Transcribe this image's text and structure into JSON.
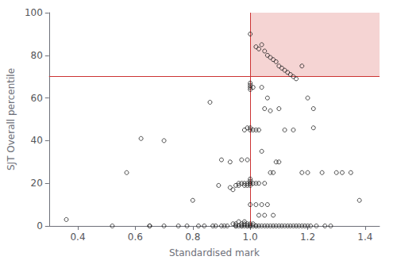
{
  "chart_data": {
    "type": "scatter",
    "xlabel": "Standardised mark",
    "ylabel": "SJT Overall percentile",
    "xlim": [
      0.3,
      1.45
    ],
    "ylim": [
      0,
      100
    ],
    "xticks": [
      0.4,
      0.6,
      0.8,
      {
        "value": 1.0,
        "label": "1.0"
      },
      1.2,
      1.4
    ],
    "yticks": [
      0,
      20,
      40,
      60,
      80,
      100
    ],
    "grid": false,
    "marker": "open circle",
    "color": "#222222",
    "vline_x": 1.0,
    "hline_y": 70,
    "line_color": "#cc3333",
    "region_color": "#d9534f",
    "x": [
      0.36,
      0.52,
      0.57,
      0.62,
      0.65,
      0.65,
      0.7,
      0.7,
      0.75,
      0.78,
      0.8,
      0.82,
      0.84,
      0.86,
      0.87,
      0.88,
      0.89,
      0.9,
      0.9,
      0.91,
      0.92,
      0.93,
      0.93,
      0.94,
      0.94,
      0.95,
      0.95,
      0.95,
      0.95,
      0.96,
      0.96,
      0.96,
      0.96,
      0.97,
      0.97,
      0.97,
      0.97,
      0.97,
      0.98,
      0.98,
      0.98,
      0.98,
      0.98,
      0.98,
      0.99,
      0.99,
      0.99,
      0.99,
      0.99,
      0.99,
      0.99,
      1.0,
      1.0,
      1.0,
      1.0,
      1.0,
      1.0,
      1.0,
      1.0,
      1.0,
      1.0,
      1.0,
      1.0,
      1.0,
      1.0,
      1.0,
      1.0,
      1.01,
      1.01,
      1.01,
      1.01,
      1.01,
      1.02,
      1.02,
      1.02,
      1.02,
      1.02,
      1.03,
      1.03,
      1.03,
      1.03,
      1.04,
      1.04,
      1.04,
      1.04,
      1.05,
      1.05,
      1.05,
      1.05,
      1.06,
      1.06,
      1.06,
      1.07,
      1.07,
      1.07,
      1.08,
      1.08,
      1.08,
      1.09,
      1.09,
      1.1,
      1.1,
      1.1,
      1.11,
      1.12,
      1.12,
      1.13,
      1.14,
      1.15,
      1.15,
      1.16,
      1.17,
      1.18,
      1.18,
      1.19,
      1.2,
      1.2,
      1.21,
      1.22,
      1.23,
      1.25,
      1.26,
      1.28,
      1.3,
      1.32,
      1.35,
      1.38,
      1.02,
      1.03,
      1.04,
      1.05,
      1.06,
      1.07,
      1.08,
      1.09,
      1.1,
      1.11,
      1.12,
      1.13,
      1.14,
      1.15,
      1.16,
      1.18,
      1.2,
      1.22
    ],
    "values": [
      3,
      0,
      25,
      41,
      0,
      0,
      0,
      40,
      0,
      0,
      12,
      0,
      0,
      58,
      0,
      0,
      19,
      0,
      31,
      0,
      0,
      18,
      30,
      17,
      1,
      0,
      19,
      1,
      0,
      19,
      2,
      0,
      20,
      0,
      20,
      1,
      31,
      0,
      19,
      2,
      45,
      20,
      1,
      0,
      0,
      19,
      1,
      46,
      20,
      31,
      0,
      0,
      1,
      19,
      20,
      21,
      22,
      45,
      46,
      64,
      65,
      66,
      67,
      90,
      20,
      10,
      0,
      0,
      1,
      20,
      65,
      45,
      0,
      20,
      45,
      10,
      0,
      0,
      20,
      45,
      5,
      0,
      35,
      65,
      10,
      0,
      20,
      55,
      5,
      0,
      60,
      10,
      0,
      25,
      54,
      0,
      25,
      5,
      0,
      30,
      0,
      30,
      55,
      0,
      0,
      45,
      0,
      0,
      0,
      45,
      0,
      0,
      25,
      0,
      0,
      0,
      25,
      0,
      46,
      0,
      25,
      0,
      0,
      25,
      25,
      25,
      12,
      84,
      83,
      85,
      82,
      80,
      79,
      78,
      77,
      75,
      74,
      73,
      72,
      71,
      70,
      69,
      75,
      60,
      55
    ]
  }
}
